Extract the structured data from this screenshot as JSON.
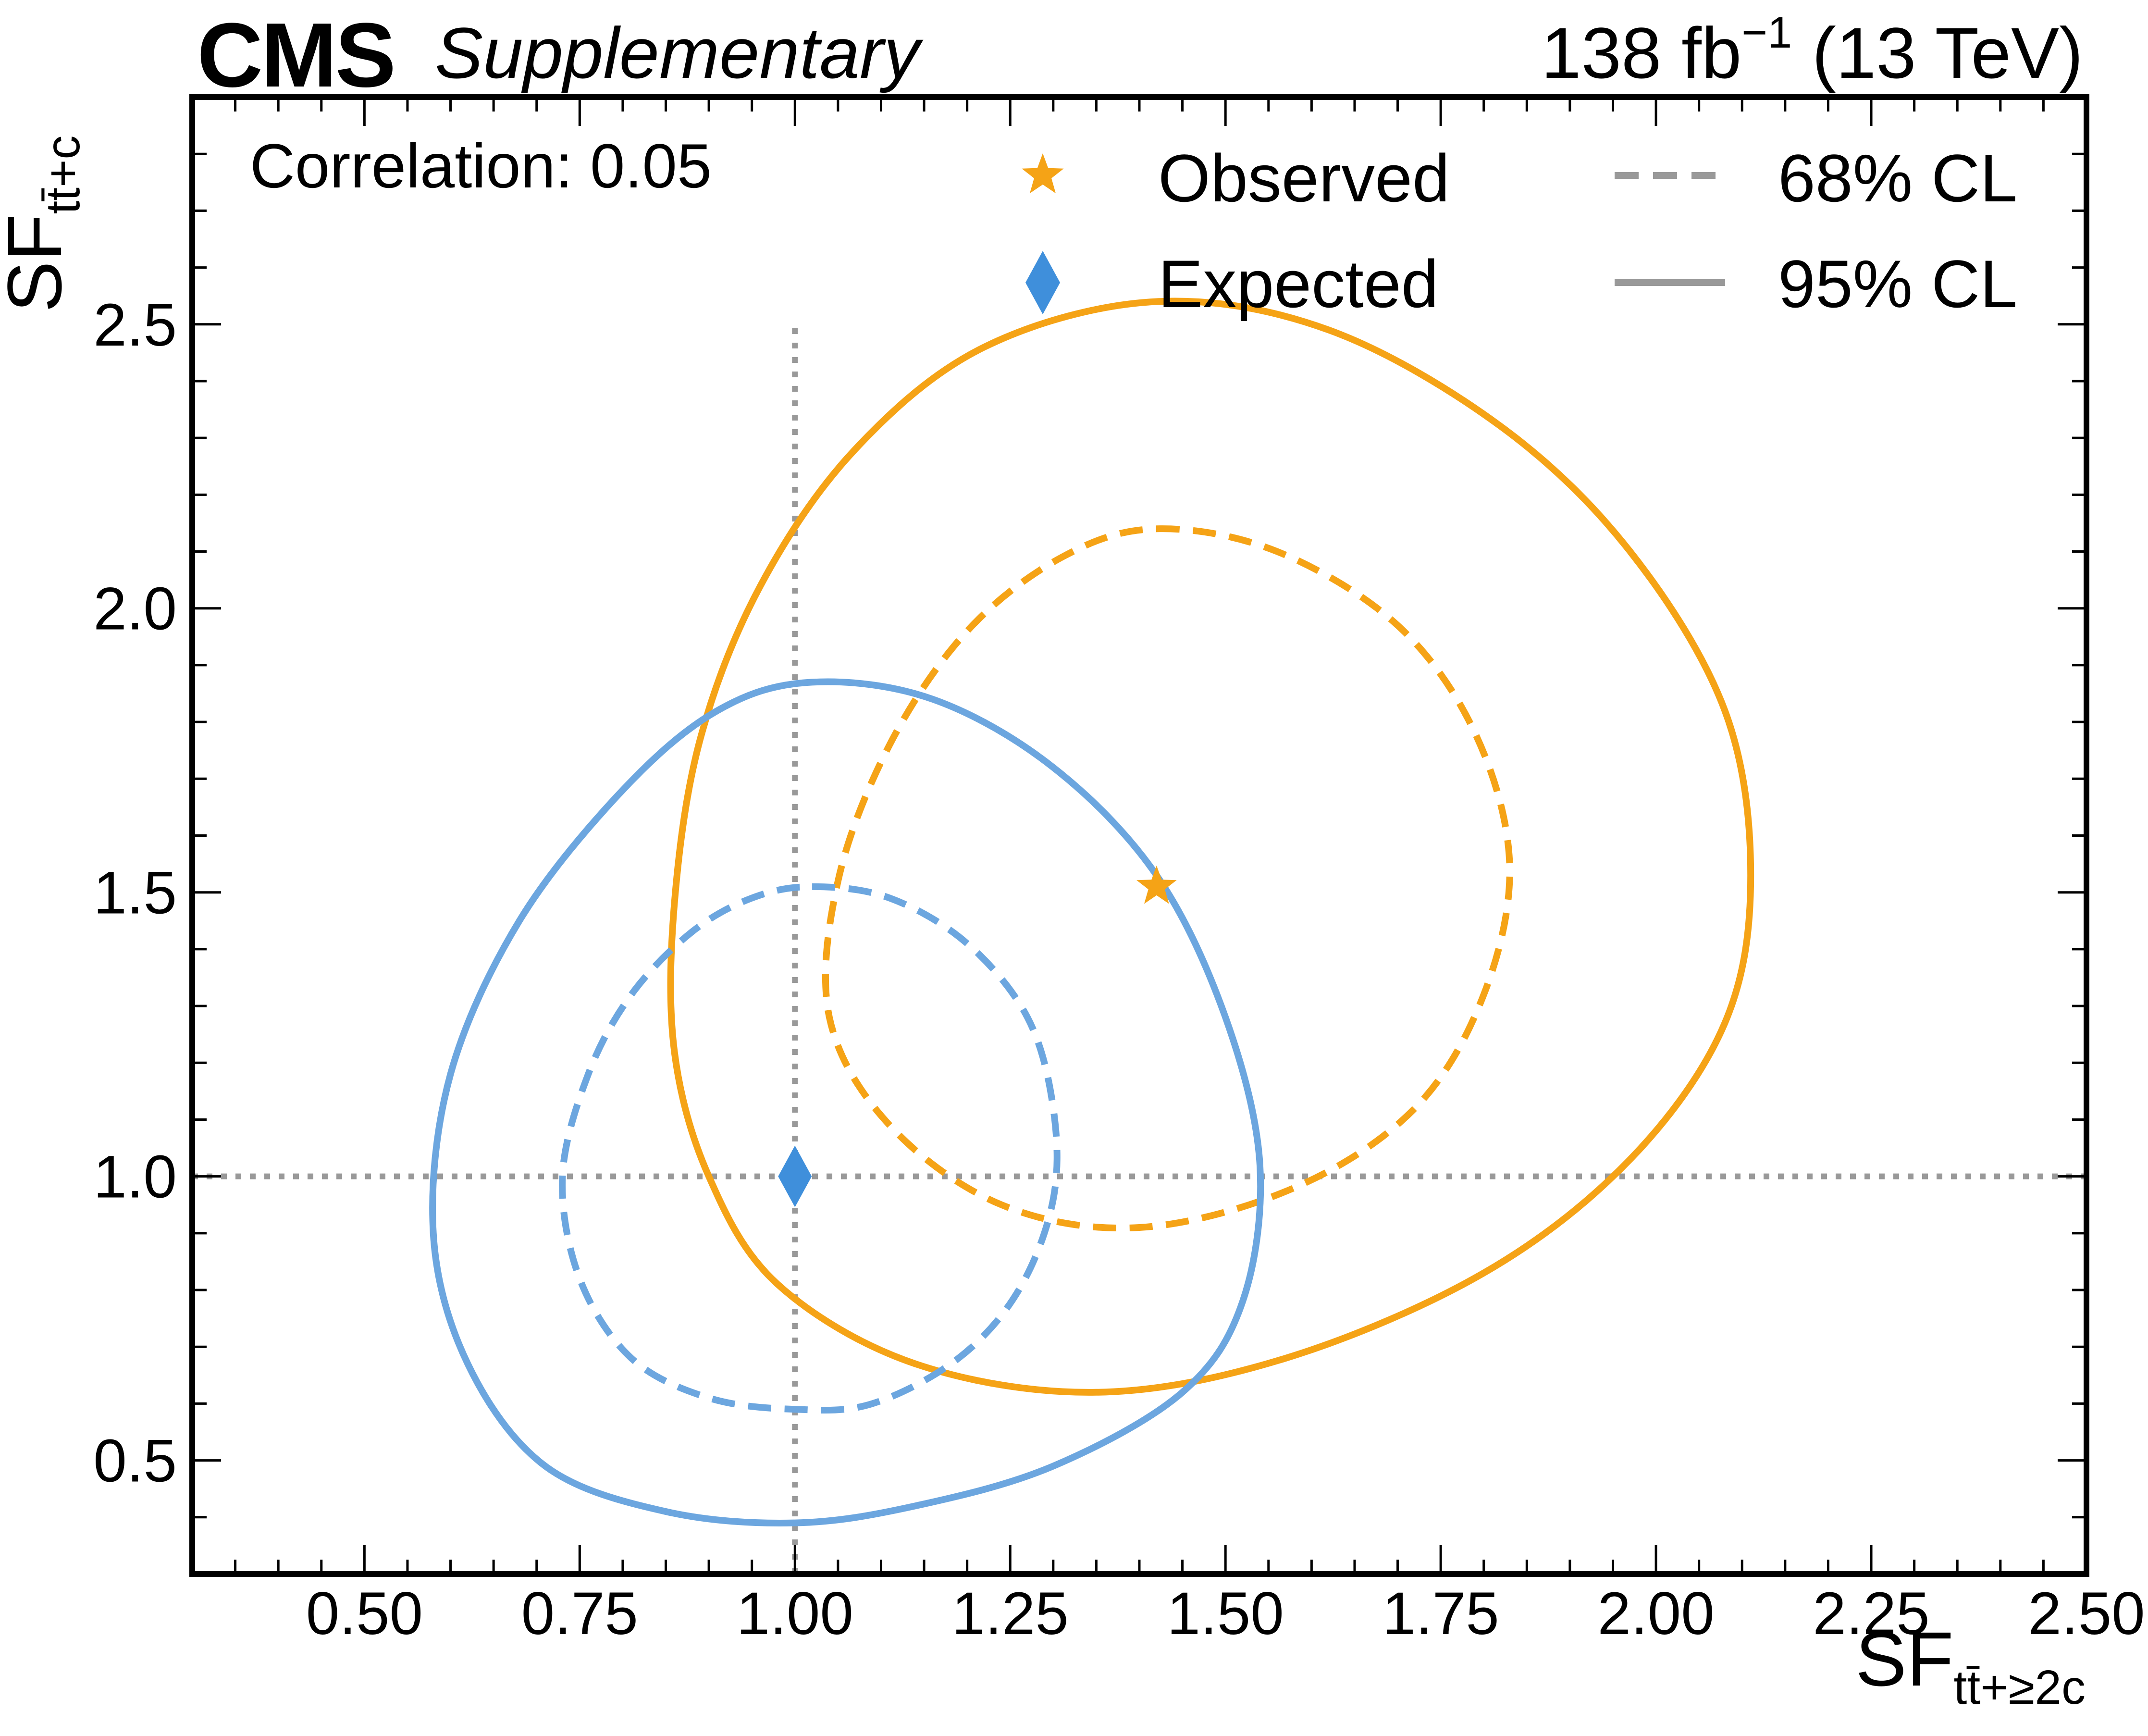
{
  "header": {
    "experiment": "CMS",
    "label": "Supplementary",
    "lumi_value": "138 fb",
    "lumi_exp": "−1",
    "energy": "(13 TeV)"
  },
  "annotation": {
    "correlation": "Correlation: 0.05"
  },
  "legend": {
    "observed": "Observed",
    "expected": "Expected",
    "cl68": "68% CL",
    "cl95": "95% CL"
  },
  "colors": {
    "observed": "#F5A316",
    "expected": "#6CA6DF",
    "expected_marker": "#3F8FDB",
    "reference": "#999999"
  },
  "chart_data": {
    "type": "contour",
    "xlabel_main": "SF",
    "xlabel_sub": "tt̄+≥2c",
    "ylabel_main": "SF",
    "ylabel_sub": "tt̄+c",
    "xlim": [
      0.3,
      2.5
    ],
    "ylim": [
      0.3,
      2.9
    ],
    "xticks": [
      "0.50",
      "0.75",
      "1.00",
      "1.25",
      "1.50",
      "1.75",
      "2.00",
      "2.25",
      "2.50"
    ],
    "yticks": [
      "0.5",
      "1.0",
      "1.5",
      "2.0",
      "2.5"
    ],
    "reference_lines": {
      "x": 1.0,
      "y": 1.0,
      "y_extent": [
        0.3,
        2.5
      ]
    },
    "points": [
      {
        "name": "Observed",
        "marker": "star",
        "x": 1.42,
        "y": 1.51
      },
      {
        "name": "Expected",
        "marker": "diamond",
        "x": 1.0,
        "y": 1.0
      }
    ],
    "contours": [
      {
        "name": "Observed 95% CL",
        "style": "solid",
        "series": "observed",
        "points": [
          [
            1.42,
            2.54
          ],
          [
            1.62,
            2.49
          ],
          [
            1.82,
            2.32
          ],
          [
            1.97,
            2.1
          ],
          [
            2.08,
            1.82
          ],
          [
            2.11,
            1.53
          ],
          [
            2.08,
            1.27
          ],
          [
            1.97,
            1.03
          ],
          [
            1.8,
            0.83
          ],
          [
            1.57,
            0.68
          ],
          [
            1.35,
            0.62
          ],
          [
            1.14,
            0.67
          ],
          [
            0.98,
            0.81
          ],
          [
            0.9,
            1.0
          ],
          [
            0.86,
            1.22
          ],
          [
            0.86,
            1.48
          ],
          [
            0.89,
            1.77
          ],
          [
            0.96,
            2.04
          ],
          [
            1.07,
            2.28
          ],
          [
            1.22,
            2.46
          ]
        ]
      },
      {
        "name": "Observed 68% CL",
        "style": "dashed",
        "series": "observed",
        "points": [
          [
            1.42,
            2.14
          ],
          [
            1.56,
            2.1
          ],
          [
            1.7,
            1.97
          ],
          [
            1.79,
            1.78
          ],
          [
            1.83,
            1.55
          ],
          [
            1.8,
            1.32
          ],
          [
            1.72,
            1.12
          ],
          [
            1.58,
            0.98
          ],
          [
            1.4,
            0.91
          ],
          [
            1.24,
            0.95
          ],
          [
            1.11,
            1.09
          ],
          [
            1.04,
            1.28
          ],
          [
            1.05,
            1.52
          ],
          [
            1.11,
            1.76
          ],
          [
            1.2,
            1.96
          ],
          [
            1.31,
            2.09
          ]
        ]
      },
      {
        "name": "Expected 95% CL",
        "style": "solid",
        "series": "expected",
        "points": [
          [
            1.02,
            1.87
          ],
          [
            1.16,
            1.84
          ],
          [
            1.3,
            1.72
          ],
          [
            1.42,
            1.53
          ],
          [
            1.5,
            1.28
          ],
          [
            1.54,
            1.02
          ],
          [
            1.52,
            0.78
          ],
          [
            1.45,
            0.62
          ],
          [
            1.3,
            0.49
          ],
          [
            1.14,
            0.42
          ],
          [
            1.0,
            0.39
          ],
          [
            0.85,
            0.41
          ],
          [
            0.71,
            0.49
          ],
          [
            0.62,
            0.67
          ],
          [
            0.58,
            0.9
          ],
          [
            0.6,
            1.18
          ],
          [
            0.68,
            1.45
          ],
          [
            0.8,
            1.68
          ],
          [
            0.91,
            1.82
          ]
        ]
      },
      {
        "name": "Expected 68% CL",
        "style": "dashed",
        "series": "expected",
        "points": [
          [
            1.02,
            1.51
          ],
          [
            1.11,
            1.49
          ],
          [
            1.2,
            1.41
          ],
          [
            1.27,
            1.28
          ],
          [
            1.3,
            1.12
          ],
          [
            1.3,
            0.96
          ],
          [
            1.26,
            0.8
          ],
          [
            1.19,
            0.68
          ],
          [
            1.09,
            0.6
          ],
          [
            1.0,
            0.59
          ],
          [
            0.9,
            0.61
          ],
          [
            0.81,
            0.68
          ],
          [
            0.75,
            0.82
          ],
          [
            0.73,
            1.0
          ],
          [
            0.76,
            1.18
          ],
          [
            0.81,
            1.32
          ],
          [
            0.88,
            1.43
          ],
          [
            0.95,
            1.49
          ]
        ]
      }
    ]
  }
}
